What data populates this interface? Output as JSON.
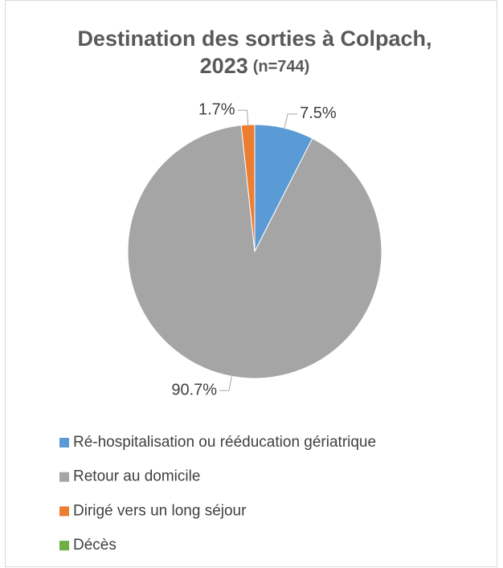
{
  "chart_data": {
    "type": "pie",
    "title_lines": [
      "Destination des sorties à Colpach,",
      "2023"
    ],
    "subtitle": "(n=744)",
    "categories": [
      "Ré-hospitalisation ou rééducation gériatrique",
      "Retour au domicile",
      "Dirigé vers un long séjour",
      "Décès"
    ],
    "values": [
      7.5,
      90.7,
      1.7,
      0
    ],
    "value_labels": [
      "7.5%",
      "90.7%",
      "1.7%",
      null
    ],
    "colors": [
      "#5b9bd5",
      "#a5a5a5",
      "#ed7d31",
      "#70ad47"
    ],
    "legend": "bottom"
  }
}
